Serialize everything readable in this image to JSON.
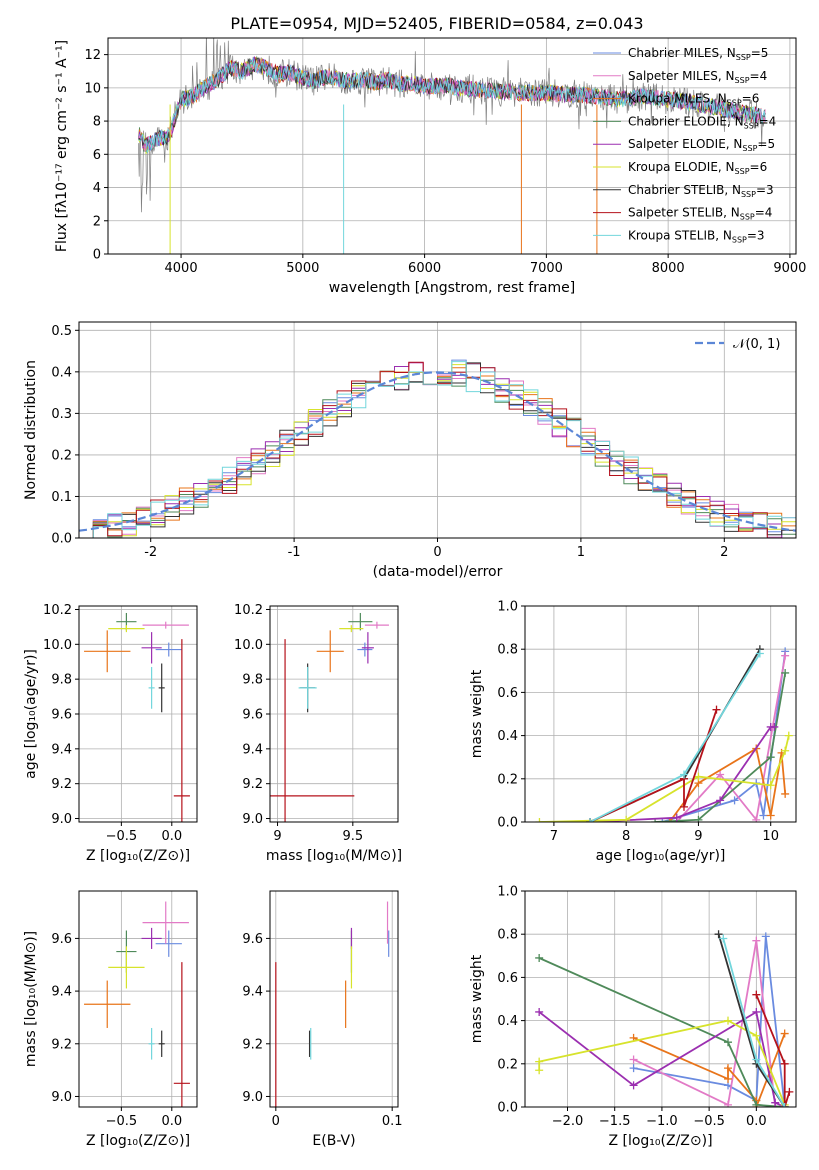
{
  "title": "PLATE=0954, MJD=52405, FIBERID=0584, z=0.043",
  "colors": {
    "spectrum": "#808080",
    "chabrier_miles": "#6a8be0",
    "salpeter_miles": "#e27ac6",
    "kroupa_miles": "#e8741a",
    "chabrier_elodie": "#4f8a5a",
    "salpeter_elodie": "#9b2fb0",
    "kroupa_elodie": "#d7e32c",
    "chabrier_stelib": "#333333",
    "salpeter_stelib": "#b5121b",
    "kroupa_stelib": "#72d6dc",
    "gaussian": "#5b86d6"
  },
  "legend_entries": [
    {
      "key": "chabrier_miles",
      "text": "Chabrier MILES, N",
      "sub": "SSP",
      "tail": "=5"
    },
    {
      "key": "salpeter_miles",
      "text": "Salpeter MILES, N",
      "sub": "SSP",
      "tail": "=4"
    },
    {
      "key": "kroupa_miles",
      "text": "Kroupa MILES, N",
      "sub": "SSP",
      "tail": "=6"
    },
    {
      "key": "chabrier_elodie",
      "text": "Chabrier ELODIE, N",
      "sub": "SSP",
      "tail": "=4"
    },
    {
      "key": "salpeter_elodie",
      "text": "Salpeter ELODIE, N",
      "sub": "SSP",
      "tail": "=5"
    },
    {
      "key": "kroupa_elodie",
      "text": "Kroupa ELODIE, N",
      "sub": "SSP",
      "tail": "=6"
    },
    {
      "key": "chabrier_stelib",
      "text": "Chabrier STELIB, N",
      "sub": "SSP",
      "tail": "=3"
    },
    {
      "key": "salpeter_stelib",
      "text": "Salpeter STELIB, N",
      "sub": "SSP",
      "tail": "=4"
    },
    {
      "key": "kroupa_stelib",
      "text": "Kroupa STELIB, N",
      "sub": "SSP",
      "tail": "=3"
    }
  ],
  "gauss_label": "𝒩(0, 1)",
  "panels": {
    "spectrum": {
      "xlabel": "wavelength [Angstrom, rest frame]",
      "ylabel": "Flux [fλ10⁻¹⁷ erg cm⁻² s⁻¹ A⁻¹]",
      "xlim": [
        3400,
        9050
      ],
      "ylim": [
        0,
        13
      ],
      "xticks": [
        4000,
        5000,
        6000,
        7000,
        8000,
        9000
      ],
      "yticks": [
        0,
        2,
        4,
        6,
        8,
        10,
        12
      ]
    },
    "residuals": {
      "xlabel": "(data-model)/error",
      "ylabel": "Normed distribution",
      "xlim": [
        -2.5,
        2.5
      ],
      "ylim": [
        0,
        0.52
      ],
      "xticks": [
        -2,
        -1,
        0,
        1,
        2
      ],
      "yticks": [
        0.0,
        0.1,
        0.2,
        0.3,
        0.4,
        0.5
      ]
    },
    "age_z": {
      "xlabel": "Z [log₁₀(Z/Z⊙)]",
      "ylabel": "age  [log₁₀(age/yr)]",
      "xlim": [
        -0.92,
        0.25
      ],
      "ylim": [
        8.98,
        10.22
      ],
      "xticks": [
        -0.5,
        0.0
      ],
      "xticklabels": [
        "−0.5",
        "0.0"
      ],
      "yticks": [
        9.0,
        9.2,
        9.4,
        9.6,
        9.8,
        10.0,
        10.2
      ]
    },
    "age_mass": {
      "xlabel": "mass [log₁₀(M/M⊙)]",
      "xlim": [
        8.95,
        9.8
      ],
      "ylim": [
        8.98,
        10.22
      ],
      "xticks": [
        9.0,
        9.5
      ],
      "yticks": [
        9.0,
        9.2,
        9.4,
        9.6,
        9.8,
        10.0,
        10.2
      ]
    },
    "mw_age": {
      "xlabel": "age  [log₁₀(age/yr)]",
      "ylabel": "mass weight",
      "xlim": [
        6.6,
        10.35
      ],
      "ylim": [
        0,
        1.0
      ],
      "xticks": [
        7,
        8,
        9,
        10
      ],
      "yticks": [
        0.0,
        0.2,
        0.4,
        0.6,
        0.8,
        1.0
      ]
    },
    "mass_z": {
      "xlabel": "Z [log₁₀(Z/Z⊙)]",
      "ylabel": "mass [log₁₀(M/M⊙)]",
      "xlim": [
        -0.92,
        0.25
      ],
      "ylim": [
        8.96,
        9.78
      ],
      "xticks": [
        -0.5,
        0.0
      ],
      "xticklabels": [
        "−0.5",
        "0.0"
      ],
      "yticks": [
        9.0,
        9.2,
        9.4,
        9.6
      ]
    },
    "mass_ebv": {
      "xlabel": "E(B-V)",
      "xlim": [
        -0.005,
        0.105
      ],
      "ylim": [
        8.96,
        9.78
      ],
      "xticks": [
        0.0,
        0.1
      ],
      "yticks": [
        9.0,
        9.2,
        9.4,
        9.6
      ]
    },
    "mw_z": {
      "xlabel": "Z [log₁₀(Z/Z⊙)]",
      "ylabel": "mass weight",
      "xlim": [
        -2.45,
        0.42
      ],
      "ylim": [
        0,
        1.0
      ],
      "xticks": [
        -2.0,
        -1.5,
        -1.0,
        -0.5,
        0.0
      ],
      "xticklabels": [
        "−2.0",
        "−1.5",
        "−1.0",
        "−0.5",
        "0.0"
      ],
      "yticks": [
        0.0,
        0.2,
        0.4,
        0.6,
        0.8,
        1.0
      ]
    }
  },
  "chart_data": {
    "type": "line",
    "title": "PLATE=0954, MJD=52405, FIBERID=0584, z=0.043",
    "spectrum_approx": {
      "wavelength": [
        3650,
        3700,
        3800,
        3900,
        3950,
        4000,
        4100,
        4200,
        4300,
        4400,
        4500,
        4600,
        4700,
        4800,
        4900,
        5000,
        5100,
        5200,
        5300,
        5400,
        5500,
        5600,
        5700,
        5800,
        5900,
        6000,
        6200,
        6400,
        6600,
        6800,
        7000,
        7200,
        7400,
        7600,
        7800,
        8000,
        8200,
        8400,
        8600,
        8800
      ],
      "flux": [
        7.4,
        6.5,
        6.9,
        7.1,
        8.2,
        9.3,
        9.5,
        10.1,
        10.5,
        11.2,
        11.0,
        11.4,
        11.2,
        10.8,
        10.9,
        10.6,
        10.4,
        10.7,
        10.5,
        10.4,
        10.5,
        10.3,
        10.5,
        10.2,
        10.3,
        10.1,
        10.1,
        9.9,
        9.8,
        9.7,
        9.7,
        9.6,
        9.5,
        9.3,
        9.5,
        9.3,
        9.1,
        8.8,
        8.5,
        8.3
      ]
    },
    "residual_histogram_approx": {
      "bin_centers": [
        -2.45,
        -2.25,
        -2.05,
        -1.85,
        -1.65,
        -1.45,
        -1.25,
        -1.05,
        -0.85,
        -0.65,
        -0.45,
        -0.25,
        -0.05,
        0.15,
        0.35,
        0.55,
        0.75,
        0.95,
        1.15,
        1.35,
        1.55,
        1.75,
        1.95,
        2.15,
        2.35
      ],
      "density": [
        0.02,
        0.03,
        0.05,
        0.07,
        0.11,
        0.15,
        0.2,
        0.25,
        0.3,
        0.35,
        0.38,
        0.42,
        0.41,
        0.44,
        0.4,
        0.38,
        0.36,
        0.32,
        0.25,
        0.2,
        0.15,
        0.1,
        0.07,
        0.04,
        0.03
      ]
    },
    "fits": [
      {
        "name": "Chabrier MILES, NSSP=5",
        "color": "#6a8be0",
        "ssp": [
          {
            "age": 10.2,
            "Z": 0.1,
            "mass": 9.58,
            "w": 0.79
          },
          {
            "age": 9.9,
            "Z": 0.0,
            "mass": 9.39,
            "w": 0.03
          },
          {
            "age": 9.8,
            "Z": -1.3,
            "mass": 9.2,
            "w": 0.18
          },
          {
            "age": 9.5,
            "Z": -0.3,
            "mass": 9.1,
            "w": 0.1
          },
          {
            "age": 8.5,
            "Z": 0.3,
            "mass": 8.9,
            "w": 0.0
          }
        ],
        "avg": {
          "Z": -0.03,
          "age": 9.97,
          "mass": 9.58,
          "ebv": 0.097
        }
      },
      {
        "name": "Salpeter MILES, NSSP=4",
        "color": "#e27ac6",
        "ssp": [
          {
            "age": 10.2,
            "Z": 0.0,
            "mass": 9.66,
            "w": 0.77
          },
          {
            "age": 9.8,
            "Z": -0.3,
            "mass": 9.4,
            "w": 0.01
          },
          {
            "age": 9.3,
            "Z": -1.3,
            "mass": 9.3,
            "w": 0.22
          },
          {
            "age": 8.7,
            "Z": 0.2,
            "mass": 9.0,
            "w": 0.0
          }
        ],
        "avg": {
          "Z": -0.06,
          "age": 10.11,
          "mass": 9.66,
          "ebv": 0.096
        }
      },
      {
        "name": "Kroupa MILES, NSSP=6",
        "color": "#e8741a",
        "ssp": [
          {
            "age": 10.2,
            "Z": -0.3,
            "mass": 9.35,
            "w": 0.13
          },
          {
            "age": 10.15,
            "Z": -1.3,
            "mass": 9.3,
            "w": 0.32
          },
          {
            "age": 10.0,
            "Z": 0.0,
            "mass": 9.2,
            "w": 0.03
          },
          {
            "age": 9.8,
            "Z": 0.3,
            "mass": 9.1,
            "w": 0.34
          },
          {
            "age": 9.0,
            "Z": -0.3,
            "mass": 8.9,
            "w": 0.18
          },
          {
            "age": 8.6,
            "Z": 0.0,
            "mass": 8.8,
            "w": 0.0
          }
        ],
        "avg": {
          "Z": -0.64,
          "age": 9.96,
          "mass": 9.35,
          "ebv": 0.06
        }
      },
      {
        "name": "Chabrier ELODIE, NSSP=4",
        "color": "#4f8a5a",
        "ssp": [
          {
            "age": 10.2,
            "Z": -2.3,
            "mass": 9.55,
            "w": 0.69
          },
          {
            "age": 10.0,
            "Z": -0.3,
            "mass": 9.4,
            "w": 0.3
          },
          {
            "age": 9.0,
            "Z": 0.0,
            "mass": 9.1,
            "w": 0.01
          },
          {
            "age": 8.4,
            "Z": 0.3,
            "mass": 8.9,
            "w": 0.0
          }
        ],
        "avg": {
          "Z": -0.45,
          "age": 10.13,
          "mass": 9.55,
          "ebv": 0.065
        }
      },
      {
        "name": "Salpeter ELODIE, NSSP=5",
        "color": "#9b2fb0",
        "ssp": [
          {
            "age": 10.05,
            "Z": -2.3,
            "mass": 9.6,
            "w": 0.44
          },
          {
            "age": 10.0,
            "Z": 0.0,
            "mass": 9.5,
            "w": 0.44
          },
          {
            "age": 9.3,
            "Z": -1.3,
            "mass": 9.3,
            "w": 0.1
          },
          {
            "age": 8.7,
            "Z": 0.2,
            "mass": 9.1,
            "w": 0.02
          },
          {
            "age": 7.5,
            "Z": 0.3,
            "mass": 8.9,
            "w": 0.0
          }
        ],
        "avg": {
          "Z": -0.2,
          "age": 9.98,
          "mass": 9.6,
          "ebv": 0.065
        }
      },
      {
        "name": "Kroupa ELODIE, NSSP=6",
        "color": "#d7e32c",
        "ssp": [
          {
            "age": 10.25,
            "Z": -0.3,
            "mass": 9.5,
            "w": 0.4
          },
          {
            "age": 10.2,
            "Z": 0.0,
            "mass": 9.4,
            "w": 0.33
          },
          {
            "age": 10.0,
            "Z": -2.3,
            "mass": 9.3,
            "w": 0.17
          },
          {
            "age": 9.0,
            "Z": -2.3,
            "mass": 9.1,
            "w": 0.21
          },
          {
            "age": 8.0,
            "Z": 0.3,
            "mass": 8.9,
            "w": 0.01
          },
          {
            "age": 6.8,
            "Z": 0.3,
            "mass": 8.8,
            "w": 0.0
          }
        ],
        "avg": {
          "Z": -0.45,
          "age": 10.09,
          "mass": 9.49,
          "ebv": 0.065
        }
      },
      {
        "name": "Chabrier STELIB, NSSP=3",
        "color": "#333333",
        "ssp": [
          {
            "age": 9.85,
            "Z": -0.4,
            "mass": 9.2,
            "w": 0.8
          },
          {
            "age": 8.8,
            "Z": 0.0,
            "mass": 9.0,
            "w": 0.2
          },
          {
            "age": 7.5,
            "Z": 0.3,
            "mass": 8.8,
            "w": 0.0
          }
        ],
        "avg": {
          "Z": -0.1,
          "age": 9.75,
          "mass": 9.2,
          "ebv": 0.029
        }
      },
      {
        "name": "Salpeter STELIB, NSSP=4",
        "color": "#b5121b",
        "ssp": [
          {
            "age": 9.25,
            "Z": 0.0,
            "mass": 9.2,
            "w": 0.52
          },
          {
            "age": 8.8,
            "Z": 0.3,
            "mass": 9.0,
            "w": 0.2
          },
          {
            "age": 8.8,
            "Z": 0.35,
            "mass": 8.9,
            "w": 0.07
          },
          {
            "age": 7.5,
            "Z": 0.3,
            "mass": 8.8,
            "w": 0.0
          }
        ],
        "avg": {
          "Z": 0.1,
          "age": 9.13,
          "mass": 9.05,
          "ebv": 0.0
        }
      },
      {
        "name": "Kroupa STELIB, NSSP=3",
        "color": "#72d6dc",
        "ssp": [
          {
            "age": 9.85,
            "Z": -0.35,
            "mass": 9.2,
            "w": 0.78
          },
          {
            "age": 8.8,
            "Z": 0.0,
            "mass": 9.0,
            "w": 0.22
          },
          {
            "age": 7.5,
            "Z": 0.3,
            "mass": 8.8,
            "w": 0.0
          }
        ],
        "avg": {
          "Z": -0.2,
          "age": 9.75,
          "mass": 9.2,
          "ebv": 0.03
        }
      }
    ]
  }
}
